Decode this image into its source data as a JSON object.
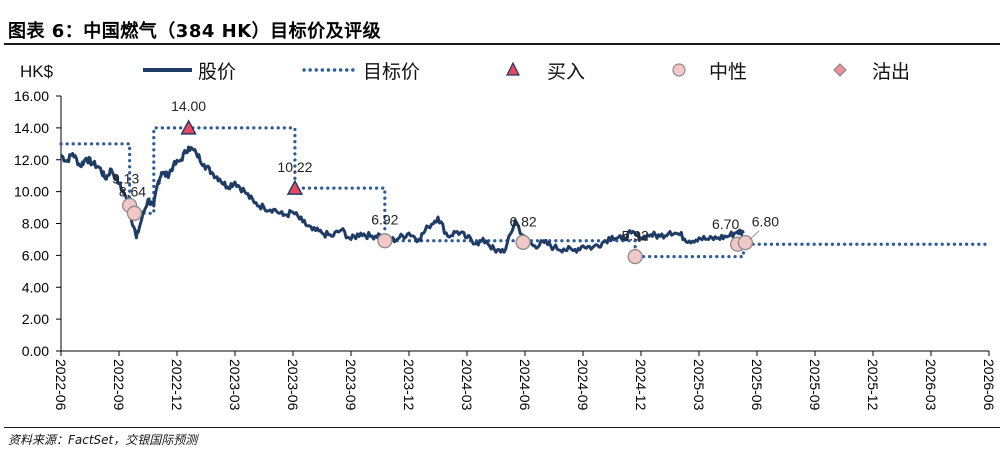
{
  "header": {
    "title": "图表 6：中国燃气（384 HK）目标价及评级"
  },
  "footer": {
    "source": "资料来源：FactSet，交银国际预测"
  },
  "colors": {
    "price": "#1F3C66",
    "target": "#2E5C99",
    "buy_fill": "#E8485F",
    "hold_fill": "#F2C7C7",
    "sell_fill": "#F08F98",
    "marker_edge": "#8A8A8A"
  },
  "chart_data": {
    "type": "line",
    "unit_label": "HK$",
    "ylim": [
      0,
      16
    ],
    "y_ticks": [
      "16.00",
      "14.00",
      "12.00",
      "10.00",
      "8.00",
      "6.00",
      "4.00",
      "2.00",
      "0.00"
    ],
    "y_tick_values": [
      16,
      14,
      12,
      10,
      8,
      6,
      4,
      2,
      0
    ],
    "x_ticks": [
      "2022-06",
      "2022-09",
      "2022-12",
      "2023-03",
      "2023-06",
      "2023-09",
      "2023-12",
      "2024-03",
      "2024-06",
      "2024-09",
      "2024-12",
      "2025-03",
      "2025-06",
      "2025-09",
      "2025-12",
      "2026-03",
      "2026-06"
    ],
    "legend": {
      "price": "股价",
      "target": "目标价",
      "buy": "买入",
      "hold": "中性",
      "sell": "沽出"
    },
    "series": [
      {
        "name": "股价",
        "style": "solid",
        "x_months": [
          0,
          0.3,
          0.6,
          1.0,
          1.3,
          1.6,
          2.0,
          2.3,
          2.6,
          3.0,
          3.3,
          3.6,
          3.9,
          4.2,
          4.5,
          4.8,
          5.0,
          5.2,
          5.5,
          5.8,
          6.2,
          6.6,
          7.0,
          7.4,
          7.8,
          8.2,
          8.6,
          9.0,
          9.5,
          10.0,
          10.5,
          11.0,
          11.5,
          12.0,
          12.5,
          13.0,
          13.5,
          14.0,
          14.5,
          15.0,
          15.5,
          16.0,
          16.5,
          17.0,
          17.5,
          18.0,
          18.5,
          19.0,
          19.5,
          20.0,
          20.5,
          21.0,
          21.5,
          22.0,
          22.5,
          23.0,
          23.5,
          24.0,
          24.5,
          25.0,
          25.5,
          26.0,
          26.5,
          27.0,
          27.5,
          28.0,
          28.5,
          29.0,
          29.5,
          30.0,
          30.5,
          31.0,
          31.5,
          32.0,
          32.5,
          33.0,
          33.5,
          34.0,
          34.5,
          35.0,
          35.3
        ],
        "values": [
          12.3,
          11.9,
          12.4,
          11.6,
          12.1,
          11.8,
          11.5,
          10.8,
          11.4,
          10.5,
          9.8,
          8.6,
          7.1,
          8.4,
          9.5,
          9.1,
          10.5,
          11.2,
          11.0,
          11.6,
          12.0,
          12.8,
          12.4,
          11.7,
          11.2,
          10.8,
          10.3,
          10.6,
          10.0,
          9.3,
          9.0,
          8.9,
          8.5,
          8.7,
          8.1,
          7.6,
          7.4,
          7.2,
          7.6,
          7.0,
          7.4,
          7.2,
          7.3,
          6.9,
          7.1,
          7.4,
          7.0,
          7.8,
          8.4,
          7.2,
          7.5,
          7.1,
          6.8,
          6.9,
          6.2,
          6.4,
          8.2,
          6.9,
          6.6,
          6.8,
          6.5,
          6.4,
          6.3,
          6.6,
          6.5,
          6.8,
          7.2,
          7.0,
          7.4,
          7.1,
          7.3,
          7.2,
          7.5,
          7.3,
          6.9,
          7.1,
          7.0,
          7.1,
          7.2,
          7.5,
          7.4
        ]
      },
      {
        "name": "目标价",
        "style": "dotted",
        "steps": [
          {
            "from": 0.0,
            "to": 3.55,
            "value": 13.0
          },
          {
            "from": 3.55,
            "to": 4.8,
            "value": 8.64
          },
          {
            "from": 4.8,
            "to": 12.1,
            "value": 14.0
          },
          {
            "from": 12.1,
            "to": 16.75,
            "value": 10.22
          },
          {
            "from": 16.75,
            "to": 29.7,
            "value": 6.92
          },
          {
            "from": 29.7,
            "to": 35.3,
            "value": 5.92
          },
          {
            "from": 35.3,
            "to": 48.0,
            "value": 6.7
          }
        ]
      }
    ],
    "rating_events": [
      {
        "x_month": 3.55,
        "value": 9.13,
        "rating": "hold",
        "label": "9.13"
      },
      {
        "x_month": 3.8,
        "value": 8.64,
        "rating": "hold",
        "label": "8.64"
      },
      {
        "x_month": 6.6,
        "value": 14.0,
        "rating": "buy",
        "label": "14.00"
      },
      {
        "x_month": 12.1,
        "value": 10.22,
        "rating": "buy",
        "label": "10.22"
      },
      {
        "x_month": 16.75,
        "value": 6.92,
        "rating": "hold",
        "label": "6.92"
      },
      {
        "x_month": 23.9,
        "value": 6.82,
        "rating": "hold",
        "label": "6.82"
      },
      {
        "x_month": 29.7,
        "value": 5.92,
        "rating": "hold",
        "label": "5.92"
      },
      {
        "x_month": 35.0,
        "value": 6.7,
        "rating": "hold",
        "label": "6.70"
      },
      {
        "x_month": 35.4,
        "value": 6.8,
        "rating": "hold",
        "label": "6.80"
      }
    ]
  }
}
